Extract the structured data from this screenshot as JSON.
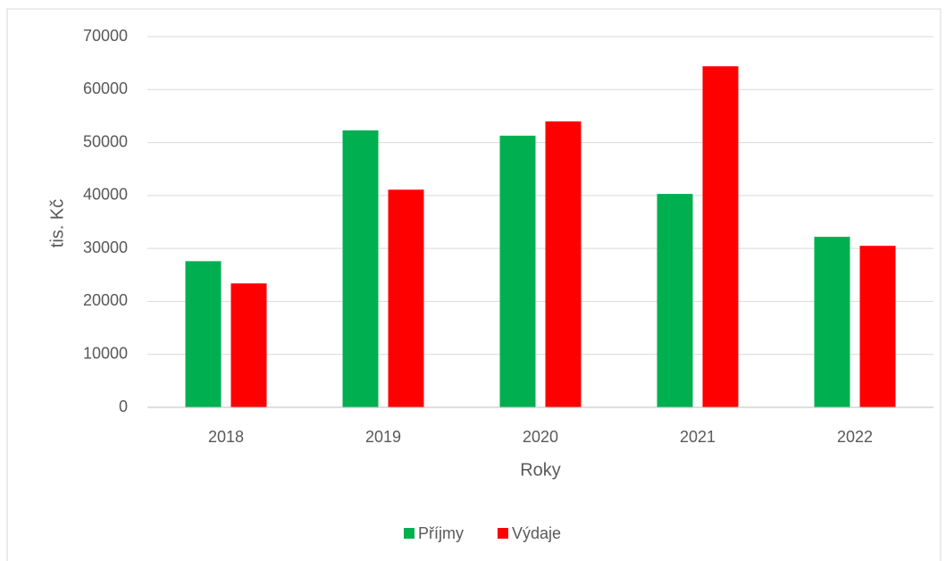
{
  "chart_data": {
    "type": "bar",
    "categories": [
      "2018",
      "2019",
      "2020",
      "2021",
      "2022"
    ],
    "series": [
      {
        "name": "Příjmy",
        "color": "#00b050",
        "values": [
          27600,
          52300,
          51300,
          40300,
          32200
        ]
      },
      {
        "name": "Výdaje",
        "color": "#ff0000",
        "values": [
          23400,
          41100,
          54000,
          64400,
          30500
        ]
      }
    ],
    "ylabel": "tis. Kč",
    "xlabel": "Roky",
    "ylim": [
      0,
      70000
    ],
    "yticks": [
      0,
      10000,
      20000,
      30000,
      40000,
      50000,
      60000,
      70000
    ],
    "grid": true,
    "legend": "bottom"
  }
}
